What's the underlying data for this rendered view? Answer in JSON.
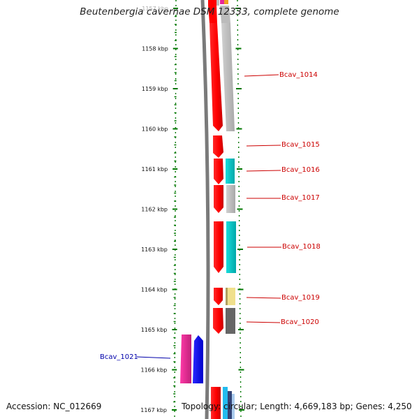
{
  "title": "Beutenbergia cavernae DSM 12333, complete genome",
  "footer": {
    "accession": "Accession: NC_012669",
    "topology": "Topology: circular; Length: 4,669,183 bp; Genes: 4,250"
  },
  "axis": {
    "ticks": [
      "1157 kbp",
      "1158 kbp",
      "1159 kbp",
      "1160 kbp",
      "1161 kbp",
      "1162 kbp",
      "1163 kbp",
      "1164 kbp",
      "1165 kbp",
      "1166 kbp",
      "1167 kbp"
    ]
  },
  "gene_labels": [
    {
      "name": "Bcav_1014",
      "color": "#cc0000"
    },
    {
      "name": "Bcav_1015",
      "color": "#cc0000"
    },
    {
      "name": "Bcav_1016",
      "color": "#cc0000"
    },
    {
      "name": "Bcav_1017",
      "color": "#cc0000"
    },
    {
      "name": "Bcav_1018",
      "color": "#cc0000"
    },
    {
      "name": "Bcav_1019",
      "color": "#cc0000"
    },
    {
      "name": "Bcav_1020",
      "color": "#cc0000"
    },
    {
      "name": "Bcav_1021",
      "color": "#0000aa"
    }
  ],
  "colors": {
    "red": "#ff0000",
    "grey": "#bdbdbd",
    "cyan": "#00cccc",
    "yellow": "#f0e08c",
    "darkgrey": "#666666",
    "magenta": "#e8289a",
    "blue": "#0000ff",
    "tick_green": "#007700"
  }
}
